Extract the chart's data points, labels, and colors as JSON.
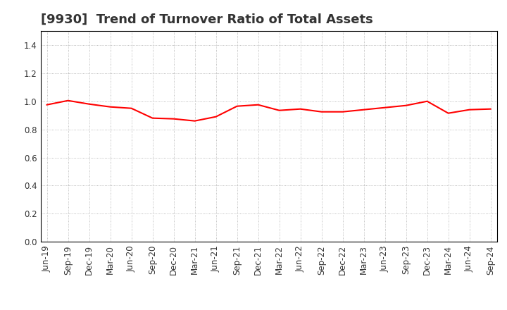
{
  "title": "[9930]  Trend of Turnover Ratio of Total Assets",
  "ylim": [
    0.0,
    1.5
  ],
  "yticks": [
    0.0,
    0.2,
    0.4,
    0.6,
    0.8,
    1.0,
    1.2,
    1.4
  ],
  "line_color": "#ff0000",
  "line_width": 1.5,
  "background_color": "#ffffff",
  "grid_color": "#aaaaaa",
  "x_labels": [
    "Jun-19",
    "Sep-19",
    "Dec-19",
    "Mar-20",
    "Jun-20",
    "Sep-20",
    "Dec-20",
    "Mar-21",
    "Jun-21",
    "Sep-21",
    "Dec-21",
    "Mar-22",
    "Jun-22",
    "Sep-22",
    "Dec-22",
    "Mar-23",
    "Jun-23",
    "Sep-23",
    "Dec-23",
    "Mar-24",
    "Jun-24",
    "Sep-24"
  ],
  "y_values": [
    0.975,
    1.005,
    0.98,
    0.96,
    0.95,
    0.88,
    0.875,
    0.86,
    0.89,
    0.965,
    0.975,
    0.935,
    0.945,
    0.925,
    0.925,
    0.94,
    0.955,
    0.97,
    1.0,
    0.915,
    0.94,
    0.945
  ],
  "title_fontsize": 13,
  "tick_fontsize": 8.5,
  "title_color": "#333333"
}
